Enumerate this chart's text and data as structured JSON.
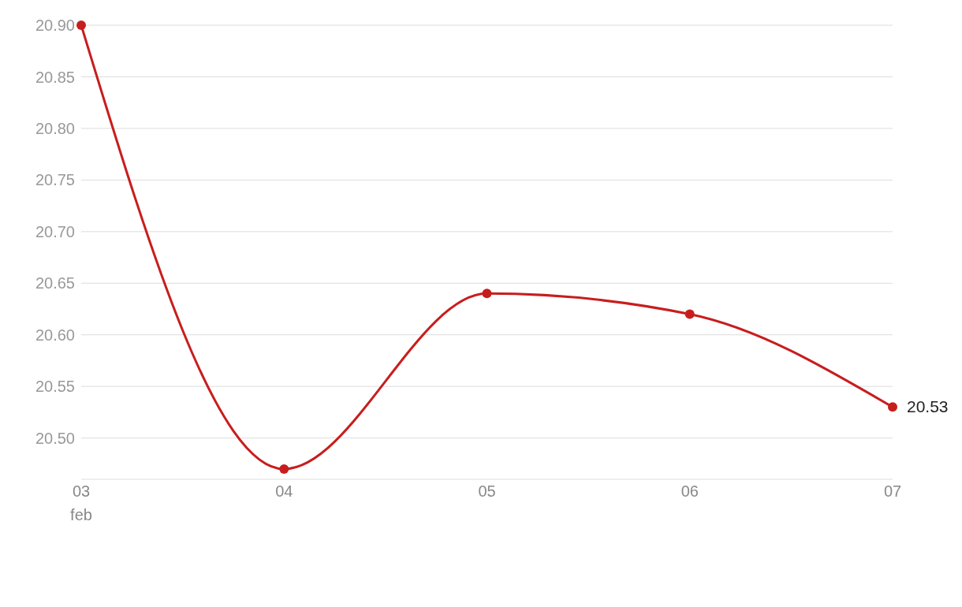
{
  "chart_data": {
    "type": "line",
    "x": [
      "--02-03",
      "--02-04",
      "--02-05",
      "--02-06",
      "--02-07"
    ],
    "series": [
      {
        "color": "#c71e1d",
        "values": [
          20.9,
          20.47,
          20.64,
          20.62,
          20.53
        ],
        "value_labels": [
          null,
          null,
          null,
          null,
          "20.53"
        ]
      }
    ],
    "xlim": [
      "--02-03",
      "--02-07"
    ],
    "xticks": [
      {
        "value": "--02-03",
        "label": "03\nfeb"
      },
      {
        "value": "--02-04",
        "label": "04"
      },
      {
        "value": "--02-05",
        "label": "05"
      },
      {
        "value": "--02-06",
        "label": "06"
      },
      {
        "value": "--02-07",
        "label": "07"
      }
    ],
    "ylim": [
      20.46,
      20.9
    ],
    "yticks": [
      {
        "value": 20.5,
        "label": "20.50"
      },
      {
        "value": 20.55,
        "label": "20.55"
      },
      {
        "value": 20.6,
        "label": "20.60"
      },
      {
        "value": 20.65,
        "label": "20.65"
      },
      {
        "value": 20.7,
        "label": "20.70"
      },
      {
        "value": 20.75,
        "label": "20.75"
      },
      {
        "value": 20.8,
        "label": "20.80"
      },
      {
        "value": 20.85,
        "label": "20.85"
      },
      {
        "value": 20.9,
        "label": "20.90"
      }
    ],
    "grid": "y",
    "marker": "circle",
    "line_style": "solid"
  }
}
